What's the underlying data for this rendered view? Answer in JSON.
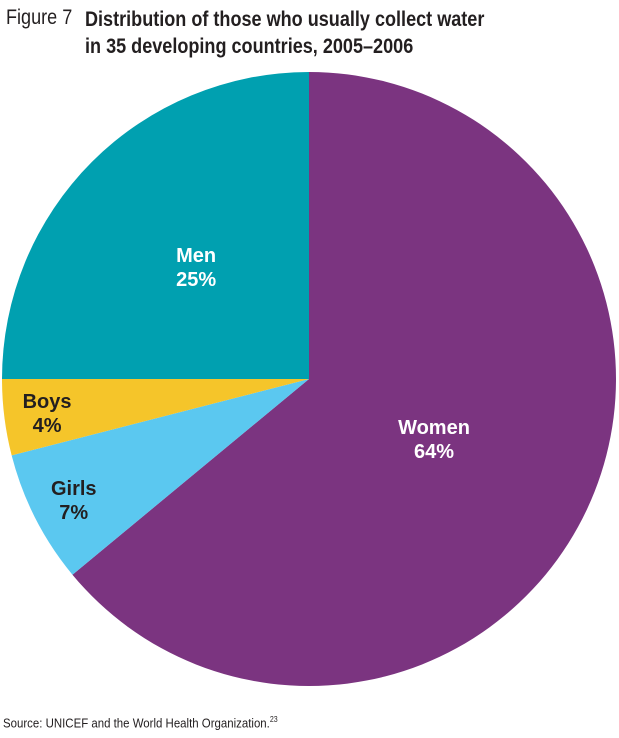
{
  "figure": {
    "number": "Figure 7",
    "title_line1": "Distribution of those who usually collect water",
    "title_line2": "in 35 developing countries, 2005–2006"
  },
  "chart_data": {
    "type": "pie",
    "title": "Distribution of those who usually collect water in 35 developing countries, 2005–2006",
    "start": "12 o'clock, clockwise",
    "slices": [
      {
        "label": "Women",
        "value": 64,
        "value_label": "64%",
        "color": "#7b3480",
        "text_color": "#ffffff"
      },
      {
        "label": "Girls",
        "value": 7,
        "value_label": "7%",
        "color": "#5bc8f0",
        "text_color": "#231f20"
      },
      {
        "label": "Boys",
        "value": 4,
        "value_label": "4%",
        "color": "#f5c52a",
        "text_color": "#231f20"
      },
      {
        "label": "Men",
        "value": 25,
        "value_label": "25%",
        "color": "#00a0b0",
        "text_color": "#ffffff"
      }
    ]
  },
  "source": {
    "text": "Source: UNICEF and the World Health Organization.",
    "footnote": "23"
  }
}
